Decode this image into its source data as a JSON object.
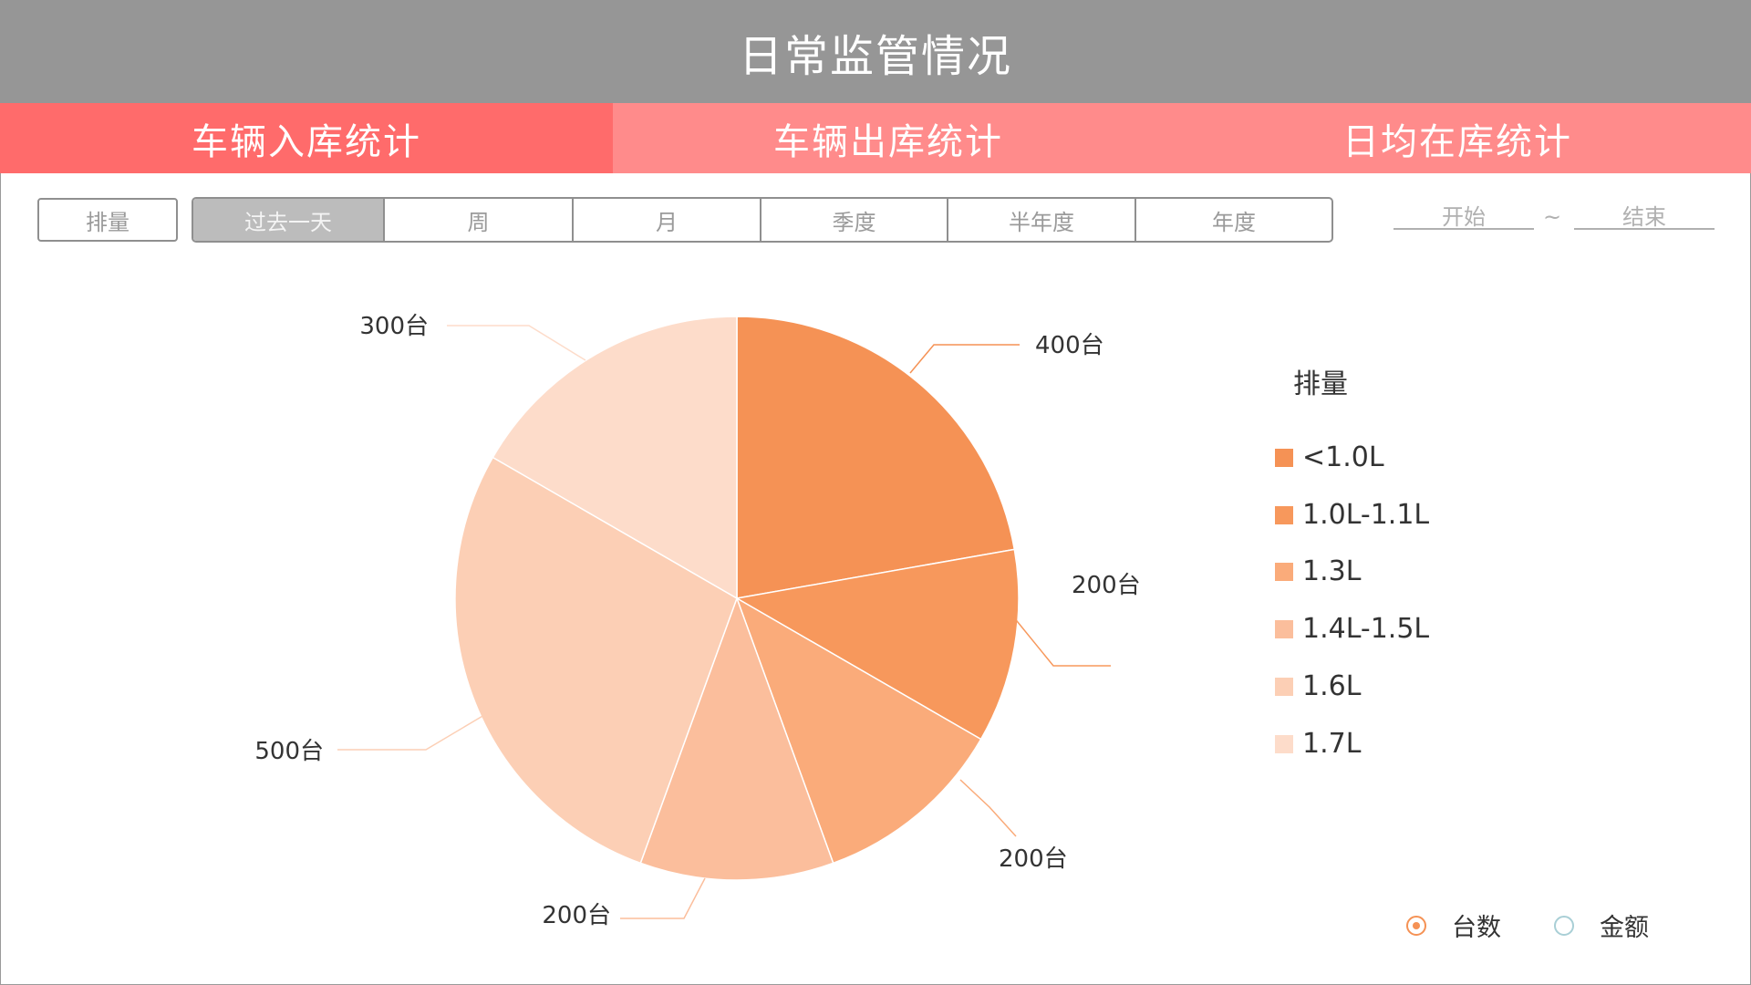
{
  "header": {
    "title": "日常监管情况"
  },
  "tabs": [
    {
      "label": "车辆入库统计",
      "active": true
    },
    {
      "label": "车辆出库统计",
      "active": false
    },
    {
      "label": "日均在库统计",
      "active": false
    }
  ],
  "filters": {
    "category_button": "排量",
    "periods": [
      "过去一天",
      "周",
      "月",
      "季度",
      "半年度",
      "年度"
    ],
    "active_period": "过去一天",
    "start_placeholder": "开始",
    "separator": "~",
    "end_placeholder": "结束"
  },
  "chart_data": {
    "type": "pie",
    "legend_title": "排量",
    "legend_placement": "right",
    "slices": [
      {
        "category": "<1.0L",
        "value": 400,
        "label": "400台",
        "color": "#f59255"
      },
      {
        "category": "1.0L-1.1L",
        "value": 200,
        "label": "200台",
        "color": "#f7985c"
      },
      {
        "category": "1.3L",
        "value": 200,
        "label": "200台",
        "color": "#faab7a"
      },
      {
        "category": "1.4L-1.5L",
        "value": 200,
        "label": "200台",
        "color": "#fbbe9c"
      },
      {
        "category": "1.6L",
        "value": 500,
        "label": "500台",
        "color": "#fccfb5"
      },
      {
        "category": "1.7L",
        "value": 300,
        "label": "300台",
        "color": "#fddcca"
      }
    ]
  },
  "toggle": {
    "options": [
      {
        "label": "台数",
        "selected": true,
        "color": "#f59255"
      },
      {
        "label": "金额",
        "selected": false,
        "color": "#a9cfd6"
      }
    ]
  }
}
